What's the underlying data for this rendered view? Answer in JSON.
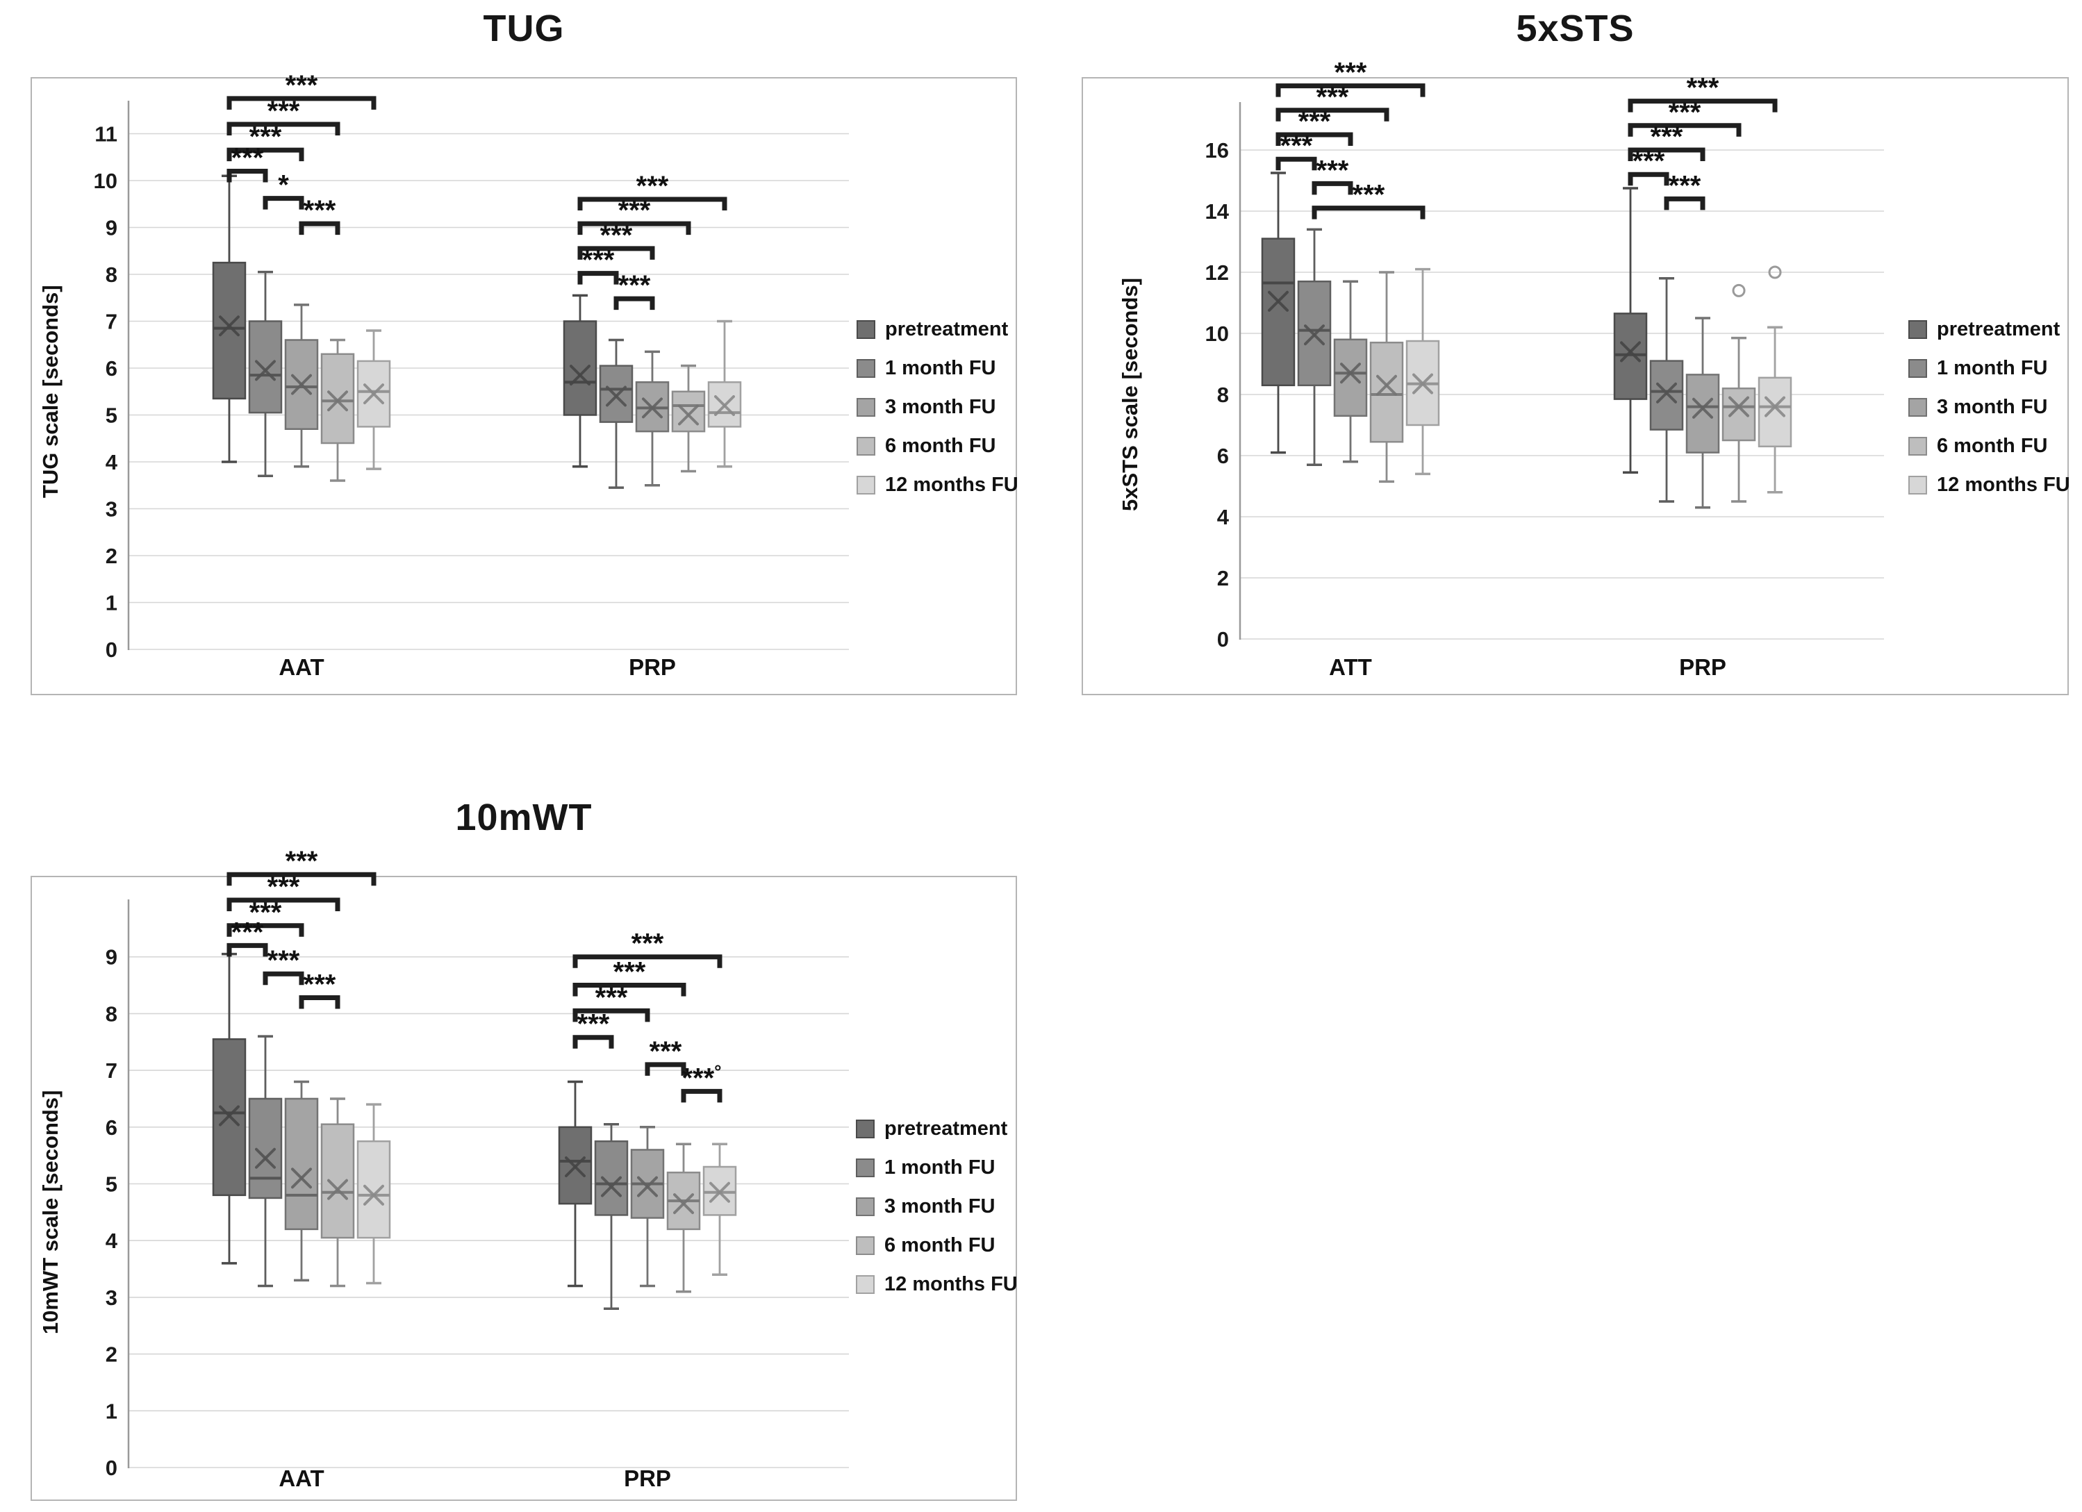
{
  "legend": {
    "items": [
      {
        "label": "pretreatment",
        "fill": "#6f6f6f",
        "border": "#4a4a4a",
        "median": "#474747",
        "marker": "#454545"
      },
      {
        "label": "1 month FU",
        "fill": "#8b8b8b",
        "border": "#5e5e5e",
        "median": "#555555",
        "marker": "#525252"
      },
      {
        "label": "3 month FU",
        "fill": "#a4a4a4",
        "border": "#737373",
        "median": "#666666",
        "marker": "#616161"
      },
      {
        "label": "6 month FU",
        "fill": "#bebebe",
        "border": "#8c8c8c",
        "median": "#7d7d7d",
        "marker": "#757575"
      },
      {
        "label": "12 months FU",
        "fill": "#d7d7d7",
        "border": "#a1a1a1",
        "median": "#949494",
        "marker": "#8a8a8a"
      }
    ]
  },
  "chart_data": [
    {
      "id": "tug",
      "type": "boxplot",
      "title": "TUG",
      "ylabel": "TUG scale [seconds]",
      "yticks": [
        0,
        1,
        2,
        3,
        4,
        5,
        6,
        7,
        8,
        9,
        10,
        11
      ],
      "ylim": [
        0,
        12.2
      ],
      "grid": true,
      "legend_position": "right",
      "series": [
        "pretreatment",
        "1 month FU",
        "3 month FU",
        "6 month FU",
        "12 months FU"
      ],
      "groups": [
        {
          "label": "AAT",
          "boxes": [
            {
              "whisker_low": 4.0,
              "q1": 5.35,
              "median": 6.85,
              "mean": 6.9,
              "q3": 8.25,
              "whisker_high": 10.1
            },
            {
              "whisker_low": 3.7,
              "q1": 5.05,
              "median": 5.85,
              "mean": 5.95,
              "q3": 7.0,
              "whisker_high": 8.05
            },
            {
              "whisker_low": 3.9,
              "q1": 4.7,
              "median": 5.6,
              "mean": 5.65,
              "q3": 6.6,
              "whisker_high": 7.35
            },
            {
              "whisker_low": 3.6,
              "q1": 4.4,
              "median": 5.3,
              "mean": 5.3,
              "q3": 6.3,
              "whisker_high": 6.6
            },
            {
              "whisker_low": 3.85,
              "q1": 4.75,
              "median": 5.5,
              "mean": 5.45,
              "q3": 6.15,
              "whisker_high": 6.8
            }
          ],
          "brackets": [
            {
              "from": 0,
              "to": 4,
              "y": 11.75,
              "label": "***"
            },
            {
              "from": 0,
              "to": 3,
              "y": 11.2,
              "label": "***"
            },
            {
              "from": 0,
              "to": 2,
              "y": 10.65,
              "label": "***"
            },
            {
              "from": 0,
              "to": 1,
              "y": 10.2,
              "label": "***"
            },
            {
              "from": 1,
              "to": 2,
              "y": 9.62,
              "label": "*"
            },
            {
              "from": 2,
              "to": 3,
              "y": 9.08,
              "label": "***"
            }
          ]
        },
        {
          "label": "PRP",
          "boxes": [
            {
              "whisker_low": 3.9,
              "q1": 5.0,
              "median": 5.7,
              "mean": 5.85,
              "q3": 7.0,
              "whisker_high": 7.55
            },
            {
              "whisker_low": 3.45,
              "q1": 4.85,
              "median": 5.55,
              "mean": 5.4,
              "q3": 6.05,
              "whisker_high": 6.6
            },
            {
              "whisker_low": 3.5,
              "q1": 4.65,
              "median": 5.15,
              "mean": 5.15,
              "q3": 5.7,
              "whisker_high": 6.35
            },
            {
              "whisker_low": 3.8,
              "q1": 4.65,
              "median": 5.2,
              "mean": 5.0,
              "q3": 5.5,
              "whisker_high": 6.05
            },
            {
              "whisker_low": 3.9,
              "q1": 4.75,
              "median": 5.05,
              "mean": 5.2,
              "q3": 5.7,
              "whisker_high": 7.0
            }
          ],
          "brackets": [
            {
              "from": 0,
              "to": 4,
              "y": 9.6,
              "label": "***"
            },
            {
              "from": 0,
              "to": 3,
              "y": 9.08,
              "label": "***"
            },
            {
              "from": 0,
              "to": 2,
              "y": 8.55,
              "label": "***"
            },
            {
              "from": 0,
              "to": 1,
              "y": 8.02,
              "label": "***"
            },
            {
              "from": 1,
              "to": 2,
              "y": 7.48,
              "label": "***"
            }
          ]
        }
      ]
    },
    {
      "id": "5xsts",
      "type": "boxplot",
      "title": "5xSTS",
      "ylabel": "5xSTS scale [seconds]",
      "yticks": [
        0,
        2,
        4,
        6,
        8,
        10,
        12,
        14,
        16
      ],
      "ylim": [
        0,
        18.4
      ],
      "grid": true,
      "legend_position": "right",
      "series": [
        "pretreatment",
        "1 month FU",
        "3 month FU",
        "6 month FU",
        "12 months FU"
      ],
      "groups": [
        {
          "label": "ATT",
          "boxes": [
            {
              "whisker_low": 6.1,
              "q1": 8.3,
              "median": 11.65,
              "mean": 11.05,
              "q3": 13.1,
              "whisker_high": 15.25
            },
            {
              "whisker_low": 5.7,
              "q1": 8.3,
              "median": 10.1,
              "mean": 9.95,
              "q3": 11.7,
              "whisker_high": 13.4
            },
            {
              "whisker_low": 5.8,
              "q1": 7.3,
              "median": 8.7,
              "mean": 8.7,
              "q3": 9.8,
              "whisker_high": 11.7
            },
            {
              "whisker_low": 5.15,
              "q1": 6.45,
              "median": 8.0,
              "mean": 8.3,
              "q3": 9.7,
              "whisker_high": 12.0
            },
            {
              "whisker_low": 5.4,
              "q1": 7.0,
              "median": 8.35,
              "mean": 8.35,
              "q3": 9.75,
              "whisker_high": 12.1
            }
          ],
          "brackets": [
            {
              "from": 0,
              "to": 4,
              "y": 18.1,
              "label": "***"
            },
            {
              "from": 0,
              "to": 3,
              "y": 17.3,
              "label": "***"
            },
            {
              "from": 0,
              "to": 2,
              "y": 16.5,
              "label": "***"
            },
            {
              "from": 0,
              "to": 1,
              "y": 15.7,
              "label": "***"
            },
            {
              "from": 1,
              "to": 2,
              "y": 14.9,
              "label": "***"
            },
            {
              "from": 1,
              "to": 4,
              "y": 14.1,
              "label": "***"
            }
          ]
        },
        {
          "label": "PRP",
          "boxes": [
            {
              "whisker_low": 5.45,
              "q1": 7.85,
              "median": 9.3,
              "mean": 9.4,
              "q3": 10.65,
              "whisker_high": 14.75
            },
            {
              "whisker_low": 4.5,
              "q1": 6.85,
              "median": 8.1,
              "mean": 8.05,
              "q3": 9.1,
              "whisker_high": 11.8
            },
            {
              "whisker_low": 4.3,
              "q1": 6.1,
              "median": 7.6,
              "mean": 7.55,
              "q3": 8.65,
              "whisker_high": 10.5
            },
            {
              "whisker_low": 4.5,
              "q1": 6.5,
              "median": 7.6,
              "mean": 7.6,
              "q3": 8.2,
              "whisker_high": 9.85,
              "outliers": [
                11.4
              ]
            },
            {
              "whisker_low": 4.8,
              "q1": 6.3,
              "median": 7.6,
              "mean": 7.6,
              "q3": 8.55,
              "whisker_high": 10.2,
              "outliers": [
                12.0
              ]
            }
          ],
          "brackets": [
            {
              "from": 0,
              "to": 4,
              "y": 17.6,
              "label": "***"
            },
            {
              "from": 0,
              "to": 3,
              "y": 16.8,
              "label": "***"
            },
            {
              "from": 0,
              "to": 2,
              "y": 16.0,
              "label": "***"
            },
            {
              "from": 0,
              "to": 1,
              "y": 15.2,
              "label": "***"
            },
            {
              "from": 1,
              "to": 2,
              "y": 14.4,
              "label": "***"
            }
          ]
        }
      ]
    },
    {
      "id": "10mwt",
      "type": "boxplot",
      "title": "10mWT",
      "ylabel": "10mWT scale [seconds]",
      "yticks": [
        0,
        1,
        2,
        3,
        4,
        5,
        6,
        7,
        8,
        9
      ],
      "ylim": [
        0,
        10.8
      ],
      "grid": true,
      "legend_position": "right",
      "series": [
        "pretreatment",
        "1 month FU",
        "3 month FU",
        "6 month FU",
        "12 months FU"
      ],
      "groups": [
        {
          "label": "AAT",
          "boxes": [
            {
              "whisker_low": 3.6,
              "q1": 4.8,
              "median": 6.25,
              "mean": 6.2,
              "q3": 7.55,
              "whisker_high": 9.05
            },
            {
              "whisker_low": 3.2,
              "q1": 4.75,
              "median": 5.1,
              "mean": 5.45,
              "q3": 6.5,
              "whisker_high": 7.6
            },
            {
              "whisker_low": 3.3,
              "q1": 4.2,
              "median": 4.8,
              "mean": 5.1,
              "q3": 6.5,
              "whisker_high": 6.8
            },
            {
              "whisker_low": 3.2,
              "q1": 4.05,
              "median": 4.85,
              "mean": 4.9,
              "q3": 6.05,
              "whisker_high": 6.5
            },
            {
              "whisker_low": 3.25,
              "q1": 4.05,
              "median": 4.8,
              "mean": 4.8,
              "q3": 5.75,
              "whisker_high": 6.4
            }
          ],
          "brackets": [
            {
              "from": 0,
              "to": 4,
              "y": 10.45,
              "label": "***"
            },
            {
              "from": 0,
              "to": 3,
              "y": 10.0,
              "label": "***"
            },
            {
              "from": 0,
              "to": 2,
              "y": 9.55,
              "label": "***"
            },
            {
              "from": 0,
              "to": 1,
              "y": 9.2,
              "label": "***"
            },
            {
              "from": 1,
              "to": 2,
              "y": 8.7,
              "label": "***"
            },
            {
              "from": 2,
              "to": 3,
              "y": 8.28,
              "label": "***"
            }
          ]
        },
        {
          "label": "PRP",
          "boxes": [
            {
              "whisker_low": 3.2,
              "q1": 4.65,
              "median": 5.4,
              "mean": 5.3,
              "q3": 6.0,
              "whisker_high": 6.8
            },
            {
              "whisker_low": 2.8,
              "q1": 4.45,
              "median": 5.0,
              "mean": 4.95,
              "q3": 5.75,
              "whisker_high": 6.05
            },
            {
              "whisker_low": 3.2,
              "q1": 4.4,
              "median": 5.0,
              "mean": 4.95,
              "q3": 5.6,
              "whisker_high": 6.0
            },
            {
              "whisker_low": 3.1,
              "q1": 4.2,
              "median": 4.7,
              "mean": 4.65,
              "q3": 5.2,
              "whisker_high": 5.7
            },
            {
              "whisker_low": 3.4,
              "q1": 4.45,
              "median": 4.85,
              "mean": 4.85,
              "q3": 5.3,
              "whisker_high": 5.7
            }
          ],
          "brackets": [
            {
              "from": 0,
              "to": 4,
              "y": 9.0,
              "label": "***"
            },
            {
              "from": 0,
              "to": 3,
              "y": 8.5,
              "label": "***"
            },
            {
              "from": 0,
              "to": 2,
              "y": 8.05,
              "label": "***"
            },
            {
              "from": 0,
              "to": 1,
              "y": 7.58,
              "label": "***"
            },
            {
              "from": 2,
              "to": 3,
              "y": 7.1,
              "label": "***"
            },
            {
              "from": 3,
              "to": 4,
              "y": 6.63,
              "label": "***",
              "sup": "°"
            }
          ]
        }
      ]
    }
  ]
}
